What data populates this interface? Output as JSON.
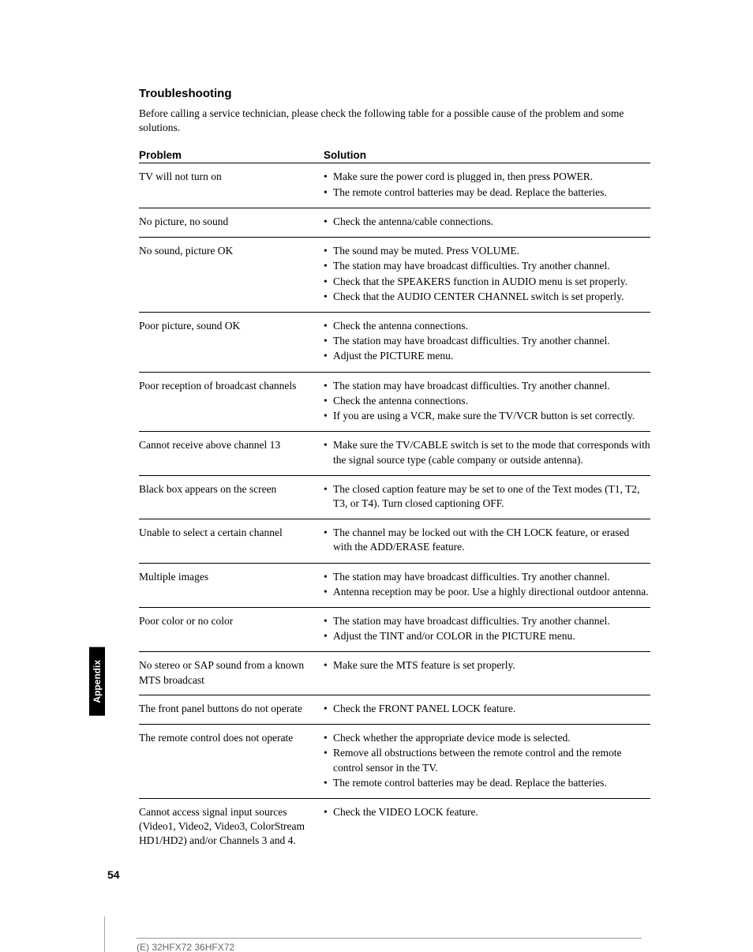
{
  "heading": "Troubleshooting",
  "intro": "Before calling a service technician, please check the following table for a possible cause of the problem and some solutions.",
  "headers": {
    "problem": "Problem",
    "solution": "Solution"
  },
  "rows": [
    {
      "problem": "TV will not turn on",
      "solutions": [
        "Make sure the power cord is plugged in, then press POWER.",
        "The remote control batteries may be dead. Replace the batteries."
      ]
    },
    {
      "problem": "No picture, no sound",
      "solutions": [
        "Check the antenna/cable connections."
      ]
    },
    {
      "problem": "No sound, picture OK",
      "solutions": [
        "The sound may be muted. Press VOLUME.",
        "The station may have broadcast difficulties. Try another channel.",
        "Check that the SPEAKERS function in AUDIO menu is set properly.",
        "Check that the AUDIO CENTER CHANNEL switch is set properly."
      ]
    },
    {
      "problem": "Poor picture, sound OK",
      "solutions": [
        "Check the antenna connections.",
        "The station may have broadcast difficulties. Try another channel.",
        "Adjust the PICTURE menu."
      ]
    },
    {
      "problem": "Poor reception of broadcast channels",
      "solutions": [
        "The station may have broadcast difficulties. Try another channel.",
        "Check the antenna connections.",
        "If you are using a VCR, make sure the TV/VCR button is set correctly."
      ]
    },
    {
      "problem": "Cannot receive above channel 13",
      "solutions": [
        "Make sure the TV/CABLE switch is set to the mode that corresponds with the signal source type (cable company or outside antenna)."
      ]
    },
    {
      "problem": "Black box appears on the screen",
      "solutions": [
        "The closed caption feature may be set to one of the Text modes (T1, T2, T3, or T4). Turn closed captioning OFF."
      ]
    },
    {
      "problem": "Unable to select a certain channel",
      "solutions": [
        "The channel may be locked out with the CH LOCK feature, or erased with the ADD/ERASE feature."
      ]
    },
    {
      "problem": "Multiple images",
      "solutions": [
        "The station may have broadcast difficulties. Try another channel.",
        "Antenna reception may be poor. Use a highly directional outdoor antenna."
      ]
    },
    {
      "problem": "Poor color or no color",
      "solutions": [
        "The station may have broadcast difficulties. Try another channel.",
        "Adjust the TINT and/or COLOR in the PICTURE menu."
      ]
    },
    {
      "problem": "No stereo or SAP sound from a known MTS broadcast",
      "solutions": [
        "Make sure the MTS feature is set properly."
      ]
    },
    {
      "problem": "The front panel buttons do not operate",
      "solutions": [
        "Check the FRONT PANEL LOCK feature."
      ]
    },
    {
      "problem": "The remote control does not operate",
      "solutions": [
        "Check whether the appropriate device mode is selected.",
        "Remove all obstructions between the remote control and the remote control sensor in the TV.",
        "The remote control batteries may be dead. Replace the batteries."
      ]
    },
    {
      "problem": "Cannot access signal input sources (Video1, Video2, Video3, ColorStream HD1/HD2) and/or Channels 3 and 4.",
      "solutions": [
        "Check the VIDEO LOCK feature."
      ]
    }
  ],
  "sideTab": "Appendix",
  "pageNumber": "54",
  "footer": "(E) 32HFX72  36HFX72"
}
